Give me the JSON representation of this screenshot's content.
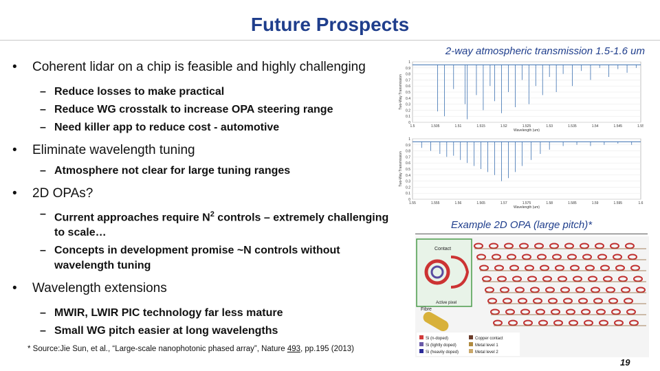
{
  "slide": {
    "title": "Future Prospects",
    "page_number": "19"
  },
  "content": {
    "b1": {
      "text": "Coherent lidar on a chip is feasible and highly challenging",
      "subs": [
        "Reduce losses to make practical",
        "Reduce WG crosstalk to increase OPA steering range",
        "Need killer app to reduce cost - automotive"
      ]
    },
    "b2": {
      "text": "Eliminate wavelength tuning",
      "subs": [
        "Atmosphere not clear for large tuning ranges"
      ]
    },
    "b3": {
      "text": "2D OPAs?",
      "sub1_a": "Current approaches require N",
      "sub1_sup": "2",
      "sub1_b": " controls – extremely challenging to scale…",
      "sub2": "Concepts in development promise ~N controls without wavelength tuning"
    },
    "b4": {
      "text": "Wavelength extensions",
      "subs": [
        "MWIR, LWIR PIC technology far less mature",
        "Small WG pitch easier at long wavelengths"
      ]
    },
    "bullet": "•",
    "dash": "–"
  },
  "captions": {
    "spectrum": "2-way atmospheric transmission 1.5-1.6 um",
    "opa": "Example 2D OPA (large pitch)*"
  },
  "source": {
    "prefix": "* Source:Jie Sun, et al., “Large-scale nanophotonic phased array”, Nature ",
    "volume": "493",
    "suffix": ", pp.195 (2013)"
  },
  "chart_data": [
    {
      "type": "line",
      "xlim": [
        1.5,
        1.55
      ],
      "x_ticks": [
        "1.5",
        "1.505",
        "1.51",
        "1.515",
        "1.52",
        "1.525",
        "1.53",
        "1.535",
        "1.54",
        "1.545",
        "1.55"
      ],
      "y_ticks": [
        "1",
        "0.9",
        "0.8",
        "0.7",
        "0.6",
        "0.5",
        "0.4",
        "0.3",
        "0.2",
        "0.1",
        "0"
      ],
      "ylim": [
        0,
        1
      ],
      "ylabel": "Two-Way Transmission",
      "xlabel": "Wavelength (um)",
      "color": "#3a6fb0",
      "dips": [
        [
          1.5055,
          0.18
        ],
        [
          1.507,
          0.1
        ],
        [
          1.509,
          0.55
        ],
        [
          1.5115,
          0.3
        ],
        [
          1.512,
          0.05
        ],
        [
          1.514,
          0.45
        ],
        [
          1.5155,
          0.2
        ],
        [
          1.517,
          0.6
        ],
        [
          1.518,
          0.35
        ],
        [
          1.5195,
          0.15
        ],
        [
          1.521,
          0.5
        ],
        [
          1.5225,
          0.25
        ],
        [
          1.524,
          0.7
        ],
        [
          1.5255,
          0.3
        ],
        [
          1.527,
          0.6
        ],
        [
          1.5285,
          0.45
        ],
        [
          1.53,
          0.75
        ],
        [
          1.5315,
          0.5
        ],
        [
          1.533,
          0.8
        ],
        [
          1.535,
          0.6
        ],
        [
          1.537,
          0.85
        ],
        [
          1.539,
          0.7
        ],
        [
          1.541,
          0.9
        ],
        [
          1.543,
          0.75
        ],
        [
          1.545,
          0.88
        ],
        [
          1.547,
          0.82
        ],
        [
          1.549,
          0.9
        ]
      ]
    },
    {
      "type": "line",
      "xlim": [
        1.55,
        1.6
      ],
      "x_ticks": [
        "1.55",
        "1.555",
        "1.56",
        "1.565",
        "1.57",
        "1.575",
        "1.58",
        "1.585",
        "1.59",
        "1.595",
        "1.6"
      ],
      "y_ticks": [
        "1",
        "0.9",
        "0.8",
        "0.7",
        "0.6",
        "0.5",
        "0.4",
        "0.3",
        "0.2",
        "0.1",
        "0"
      ],
      "ylim": [
        0,
        1
      ],
      "ylabel": "Two-Way Transmission",
      "xlabel": "Wavelength (um)",
      "color": "#3a6fb0",
      "dips": [
        [
          1.552,
          0.85
        ],
        [
          1.554,
          0.8
        ],
        [
          1.556,
          0.75
        ],
        [
          1.5575,
          0.7
        ],
        [
          1.559,
          0.72
        ],
        [
          1.5605,
          0.65
        ],
        [
          1.562,
          0.6
        ],
        [
          1.5635,
          0.55
        ],
        [
          1.565,
          0.5
        ],
        [
          1.5665,
          0.45
        ],
        [
          1.568,
          0.4
        ],
        [
          1.5695,
          0.3
        ],
        [
          1.571,
          0.35
        ],
        [
          1.5725,
          0.45
        ],
        [
          1.574,
          0.55
        ],
        [
          1.576,
          0.65
        ],
        [
          1.578,
          0.75
        ],
        [
          1.58,
          0.82
        ],
        [
          1.583,
          0.88
        ],
        [
          1.586,
          0.9
        ],
        [
          1.589,
          0.88
        ],
        [
          1.592,
          0.9
        ],
        [
          1.595,
          0.92
        ],
        [
          1.598,
          0.9
        ]
      ]
    }
  ],
  "opa_figure": {
    "labels": [
      "Contact",
      "Active pixel",
      "Fibre",
      "Si (n-doped)",
      "Si (lightly doped)",
      "Si (heavily doped)",
      "Copper contact",
      "Metal level 1",
      "Metal level 2"
    ],
    "legend_colors": [
      "#d23b3b",
      "#6a5aa8",
      "#2b2b9a",
      "#6b3c2a",
      "#b08a3e",
      "#caa86a"
    ]
  }
}
